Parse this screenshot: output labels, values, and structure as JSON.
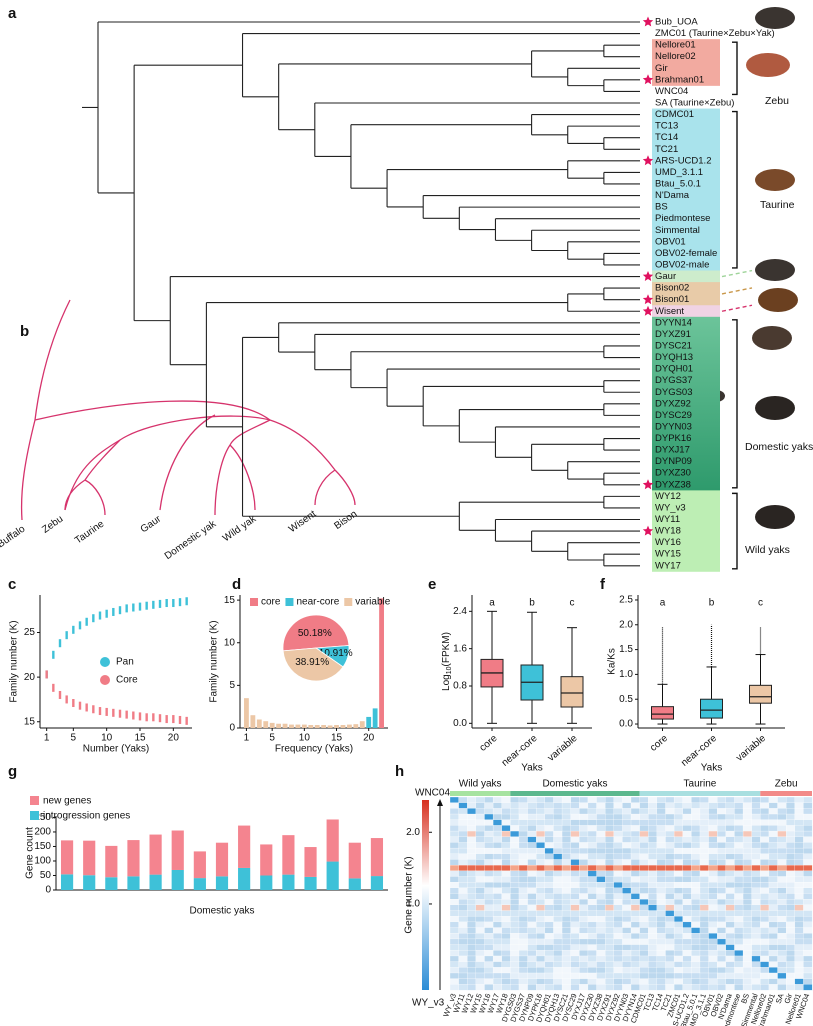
{
  "panel_labels": [
    "a",
    "b",
    "c",
    "d",
    "e",
    "f",
    "g",
    "h"
  ],
  "tree_a": {
    "leaves": [
      {
        "name": "Bub_UOA",
        "star": true
      },
      {
        "name": "ZMC01 (Taurine×Zebu×Yak)"
      },
      {
        "name": "Nellore01"
      },
      {
        "name": "Nellore02"
      },
      {
        "name": "Gir"
      },
      {
        "name": "Brahman01",
        "star": true
      },
      {
        "name": "WNC04"
      },
      {
        "name": "SA (Taurine×Zebu)"
      },
      {
        "name": "CDMC01"
      },
      {
        "name": "TC13"
      },
      {
        "name": "TC14"
      },
      {
        "name": "TC21"
      },
      {
        "name": "ARS-UCD1.2",
        "star": true
      },
      {
        "name": "UMD_3.1.1"
      },
      {
        "name": "Btau_5.0.1"
      },
      {
        "name": "N'Dama"
      },
      {
        "name": "BS"
      },
      {
        "name": "Piedmontese"
      },
      {
        "name": "Simmental"
      },
      {
        "name": "OBV01"
      },
      {
        "name": "OBV02-female"
      },
      {
        "name": "OBV02-male"
      },
      {
        "name": "Gaur",
        "star": true
      },
      {
        "name": "Bison02"
      },
      {
        "name": "Bison01",
        "star": true
      },
      {
        "name": "Wisent",
        "star": true
      },
      {
        "name": "DYYN14"
      },
      {
        "name": "DYXZ91"
      },
      {
        "name": "DYSC21"
      },
      {
        "name": "DYQH13"
      },
      {
        "name": "DYQH01"
      },
      {
        "name": "DYGS37"
      },
      {
        "name": "DYGS03"
      },
      {
        "name": "DYXZ92"
      },
      {
        "name": "DYSC29"
      },
      {
        "name": "DYYN03"
      },
      {
        "name": "DYPK16"
      },
      {
        "name": "DYXJ17"
      },
      {
        "name": "DYNP09"
      },
      {
        "name": "DYXZ30"
      },
      {
        "name": "DYXZ38",
        "star": true
      },
      {
        "name": "WY12"
      },
      {
        "name": "WY_v3"
      },
      {
        "name": "WY11"
      },
      {
        "name": "WY18",
        "star": true
      },
      {
        "name": "WY16"
      },
      {
        "name": "WY15"
      },
      {
        "name": "WY17"
      }
    ],
    "group_labels": [
      "Zebu",
      "Taurine",
      "Domestic yaks",
      "Wild yaks"
    ]
  },
  "tree_b": {
    "leaves": [
      "Buffalo",
      "Zebu",
      "Taurine",
      "Gaur",
      "Domestic yak",
      "Wild yak",
      "Wisent",
      "Bison"
    ]
  },
  "chart_data": [
    {
      "type": "scatter",
      "xlabel": "Number (Yaks)",
      "ylabel": "Family number (K)",
      "x": [
        1,
        2,
        3,
        4,
        5,
        6,
        7,
        8,
        9,
        10,
        11,
        12,
        13,
        14,
        15,
        16,
        17,
        18,
        19,
        20,
        21,
        22
      ],
      "series": [
        {
          "name": "Pan",
          "color": "#3ec1d8",
          "values": [
            20.3,
            22.5,
            23.8,
            24.7,
            25.3,
            25.8,
            26.2,
            26.6,
            26.9,
            27.1,
            27.3,
            27.5,
            27.7,
            27.8,
            27.9,
            28.0,
            28.1,
            28.2,
            28.3,
            28.3,
            28.4,
            28.5
          ]
        },
        {
          "name": "Core",
          "color": "#f07c86",
          "values": [
            20.3,
            18.8,
            18.0,
            17.5,
            17.1,
            16.8,
            16.6,
            16.4,
            16.2,
            16.1,
            16.0,
            15.9,
            15.8,
            15.7,
            15.6,
            15.5,
            15.5,
            15.4,
            15.3,
            15.3,
            15.2,
            15.1
          ]
        }
      ],
      "xlim": [
        0,
        22.8
      ],
      "xticks": [
        1,
        5,
        10,
        15,
        20
      ],
      "ylim": [
        14.3,
        29.2
      ],
      "yticks": [
        15,
        20,
        25
      ]
    },
    {
      "type": "bar",
      "xlabel": "Frequency (Yaks)",
      "ylabel": "Family number (K)",
      "x": [
        1,
        2,
        3,
        4,
        5,
        6,
        7,
        8,
        9,
        10,
        11,
        12,
        13,
        14,
        15,
        16,
        17,
        18,
        19,
        20,
        21,
        22
      ],
      "values": [
        3.5,
        1.5,
        1.0,
        0.8,
        0.6,
        0.5,
        0.5,
        0.4,
        0.4,
        0.4,
        0.35,
        0.35,
        0.35,
        0.3,
        0.35,
        0.35,
        0.4,
        0.45,
        0.8,
        1.3,
        2.3,
        15.2
      ],
      "bar_colors": [
        "#ecc7a6",
        "#ecc7a6",
        "#ecc7a6",
        "#ecc7a6",
        "#ecc7a6",
        "#ecc7a6",
        "#ecc7a6",
        "#ecc7a6",
        "#ecc7a6",
        "#ecc7a6",
        "#ecc7a6",
        "#ecc7a6",
        "#ecc7a6",
        "#ecc7a6",
        "#ecc7a6",
        "#ecc7a6",
        "#ecc7a6",
        "#ecc7a6",
        "#ecc7a6",
        "#3ec1d8",
        "#3ec1d8",
        "#f07c86"
      ],
      "legend": [
        "core",
        "near-core",
        "variable"
      ],
      "legend_colors": [
        "#f07c86",
        "#3ec1d8",
        "#ecc7a6"
      ],
      "inset_pie": {
        "values": [
          50.18,
          10.91,
          38.91
        ],
        "value_labels": [
          "50.18%",
          "10.91%",
          "38.91%"
        ]
      },
      "xlim": [
        0,
        23
      ],
      "xticks": [
        1,
        5,
        10,
        15,
        20
      ],
      "ylim": [
        0,
        15.6
      ],
      "yticks": [
        0,
        5,
        10,
        15
      ]
    },
    {
      "type": "box",
      "xlabel": "Yaks",
      "ylabel": {
        "main": "Log",
        "sub": "10",
        "rest": "(FPKM)"
      },
      "categories": [
        "core",
        "near-core",
        "variable"
      ],
      "colors": [
        "#f07c86",
        "#3ec1d8",
        "#ecc7a6"
      ],
      "letters": [
        "a",
        "b",
        "c"
      ],
      "boxes": [
        {
          "whislo": 0.0,
          "q1": 0.78,
          "med": 1.08,
          "q3": 1.37,
          "whishi": 2.4
        },
        {
          "whislo": 0.0,
          "q1": 0.5,
          "med": 0.88,
          "q3": 1.25,
          "whishi": 2.38
        },
        {
          "whislo": 0.0,
          "q1": 0.35,
          "med": 0.65,
          "q3": 1.0,
          "whishi": 2.05
        }
      ],
      "ylim": [
        -0.1,
        2.75
      ],
      "yticks": [
        {
          "value": 0,
          "label": "0.0"
        },
        0.8,
        1.6,
        2.4
      ]
    },
    {
      "type": "box",
      "xlabel": "Yaks",
      "ylabel": "Ka/Ks",
      "categories": [
        "core",
        "near-core",
        "variable"
      ],
      "colors": [
        "#f07c86",
        "#3ec1d8",
        "#ecc7a6"
      ],
      "letters": [
        "a",
        "b",
        "c"
      ],
      "boxes": [
        {
          "whislo": 0.0,
          "q1": 0.1,
          "med": 0.2,
          "q3": 0.35,
          "whishi": 0.8,
          "outlier_max": 1.95
        },
        {
          "whislo": 0.0,
          "q1": 0.12,
          "med": 0.28,
          "q3": 0.5,
          "whishi": 1.15,
          "outlier_max": 2.0
        },
        {
          "whislo": 0.0,
          "q1": 0.42,
          "med": 0.55,
          "q3": 0.78,
          "whishi": 1.4,
          "outlier_max": 1.95
        }
      ],
      "ylim": [
        -0.08,
        2.6
      ],
      "yticks": [
        {
          "value": 0,
          "label": "0.0"
        },
        0.5,
        {
          "value": 1,
          "label": "1.0"
        },
        1.5,
        {
          "value": 2,
          "label": "2.0"
        },
        2.5
      ]
    },
    {
      "type": "stacked_bar",
      "xlabel": "Domestic yaks",
      "ylabel": "Gene count",
      "series": [
        {
          "name": "introgression genes",
          "color": "#3ec1d8",
          "values": [
            54,
            51,
            44,
            47,
            53,
            69,
            41,
            47,
            76,
            50,
            53,
            45,
            98,
            40,
            48
          ]
        },
        {
          "name": "new genes",
          "color": "#f4848f",
          "values": [
            117,
            119,
            108,
            125,
            138,
            136,
            92,
            116,
            146,
            107,
            136,
            103,
            145,
            123,
            131
          ]
        }
      ],
      "ylim": [
        0,
        255
      ],
      "yticks": [
        0,
        50,
        100,
        150,
        200,
        250
      ]
    }
  ],
  "heatmap_h": {
    "groups": [
      "Wild yaks",
      "Domestic yaks",
      "Taurine",
      "Zebu"
    ],
    "colorbar": {
      "top": "WNC04",
      "bottom": "WY_v3",
      "label": "Gene number (K)",
      "ylim": [
        -0.2,
        2.45
      ],
      "yticks": [
        {
          "value": 1,
          "label": "1.0"
        },
        {
          "value": 2,
          "label": "2.0"
        }
      ]
    },
    "columns": [
      "WY_v3",
      "WY11",
      "WY12",
      "WY15",
      "WY16",
      "WY17",
      "WY18",
      "DYGS03",
      "DYGS37",
      "DYNP09",
      "DYPK16",
      "DYQH01",
      "DYQH13",
      "DYSC21",
      "DYSC29",
      "DYXJ17",
      "DYXZ30",
      "DYXZ38",
      "DYXZ91",
      "DYXZ92",
      "DYYN03",
      "DYYN14",
      "CDMC01",
      "TC13",
      "TC14",
      "TC21",
      "ZMC01",
      "ARS-UCD1.2",
      "Btau_5.0.1",
      "UMD_3.1.1",
      "OBV01",
      "OBV02",
      "N'Dama",
      "Piedmontese",
      "BS",
      "Simmental",
      "Nellore02",
      "Brahman01",
      "SA",
      "Gir",
      "Nellore01",
      "WNC04"
    ]
  }
}
